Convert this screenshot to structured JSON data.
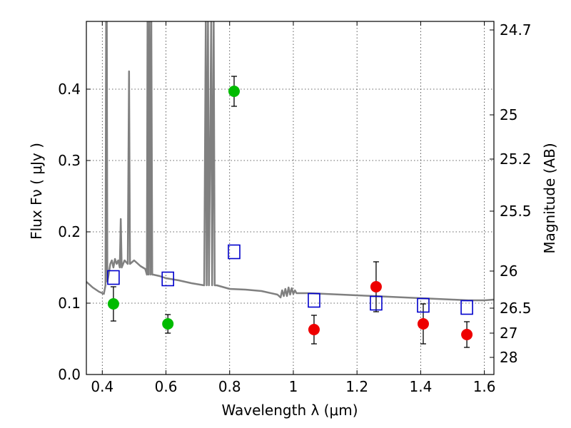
{
  "chart_data": {
    "type": "scatter",
    "xlabel": "Wavelength  λ (μm)",
    "ylabel": "Flux  Fν  ( μJy )",
    "right_ylabel": "Magnitude (AB)",
    "xlim": [
      0.35,
      1.63
    ],
    "ylim": [
      0.0,
      0.495
    ],
    "grid": true,
    "x_ticks": [
      0.4,
      0.6,
      0.8,
      1.0,
      1.2,
      1.4,
      1.6
    ],
    "x_tick_labels": [
      "0.4",
      "0.6",
      "0.8",
      "1",
      "1.2",
      "1.4",
      "1.6"
    ],
    "y_ticks": [
      0.0,
      0.1,
      0.2,
      0.3,
      0.4
    ],
    "y_tick_labels": [
      "0.0",
      "0.1",
      "0.2",
      "0.3",
      "0.4"
    ],
    "right_ticks": [
      {
        "label": "24.7",
        "flux": 0.483
      },
      {
        "label": "25",
        "flux": 0.364
      },
      {
        "label": "25.2",
        "flux": 0.302
      },
      {
        "label": "25.5",
        "flux": 0.229
      },
      {
        "label": "26",
        "flux": 0.145
      },
      {
        "label": "26.5",
        "flux": 0.093
      },
      {
        "label": "27",
        "flux": 0.058
      },
      {
        "label": "28",
        "flux": 0.024
      }
    ],
    "colors": {
      "green": "#00bb00",
      "red": "#ee0000",
      "blue": "#0000cc",
      "model": "#808080"
    },
    "series": [
      {
        "name": "observed-green",
        "marker": "circle",
        "color": "green",
        "points": [
          {
            "x": 0.435,
            "y": 0.099,
            "err": 0.024
          },
          {
            "x": 0.606,
            "y": 0.071,
            "err": 0.013
          },
          {
            "x": 0.814,
            "y": 0.397,
            "err": 0.021
          }
        ]
      },
      {
        "name": "observed-red",
        "marker": "circle",
        "color": "red",
        "points": [
          {
            "x": 1.065,
            "y": 0.063,
            "err": 0.02
          },
          {
            "x": 1.26,
            "y": 0.123,
            "err": 0.035
          },
          {
            "x": 1.408,
            "y": 0.071,
            "err": 0.028
          },
          {
            "x": 1.545,
            "y": 0.056,
            "err": 0.018
          }
        ]
      },
      {
        "name": "model-photometry",
        "marker": "square",
        "color": "blue",
        "points": [
          {
            "x": 0.435,
            "y": 0.136
          },
          {
            "x": 0.606,
            "y": 0.134
          },
          {
            "x": 0.814,
            "y": 0.172
          },
          {
            "x": 1.065,
            "y": 0.104
          },
          {
            "x": 1.26,
            "y": 0.1
          },
          {
            "x": 1.408,
            "y": 0.097
          },
          {
            "x": 1.545,
            "y": 0.094
          }
        ]
      }
    ],
    "model_spectrum": {
      "name": "model-sed",
      "color": "model",
      "points": [
        [
          0.35,
          0.13
        ],
        [
          0.37,
          0.122
        ],
        [
          0.39,
          0.116
        ],
        [
          0.405,
          0.113
        ],
        [
          0.41,
          0.125
        ],
        [
          0.412,
          0.495
        ],
        [
          0.414,
          0.495
        ],
        [
          0.416,
          0.13
        ],
        [
          0.42,
          0.14
        ],
        [
          0.425,
          0.155
        ],
        [
          0.43,
          0.16
        ],
        [
          0.435,
          0.15
        ],
        [
          0.44,
          0.162
        ],
        [
          0.445,
          0.155
        ],
        [
          0.45,
          0.16
        ],
        [
          0.455,
          0.15
        ],
        [
          0.458,
          0.218
        ],
        [
          0.461,
          0.15
        ],
        [
          0.47,
          0.16
        ],
        [
          0.48,
          0.155
        ],
        [
          0.484,
          0.425
        ],
        [
          0.487,
          0.155
        ],
        [
          0.5,
          0.16
        ],
        [
          0.52,
          0.152
        ],
        [
          0.535,
          0.148
        ],
        [
          0.54,
          0.14
        ],
        [
          0.542,
          0.495
        ],
        [
          0.545,
          0.14
        ],
        [
          0.548,
          0.495
        ],
        [
          0.551,
          0.14
        ],
        [
          0.554,
          0.495
        ],
        [
          0.557,
          0.14
        ],
        [
          0.56,
          0.14
        ],
        [
          0.58,
          0.138
        ],
        [
          0.6,
          0.135
        ],
        [
          0.64,
          0.132
        ],
        [
          0.68,
          0.128
        ],
        [
          0.72,
          0.125
        ],
        [
          0.725,
          0.495
        ],
        [
          0.728,
          0.125
        ],
        [
          0.732,
          0.495
        ],
        [
          0.735,
          0.125
        ],
        [
          0.742,
          0.495
        ],
        [
          0.745,
          0.125
        ],
        [
          0.75,
          0.495
        ],
        [
          0.753,
          0.125
        ],
        [
          0.76,
          0.125
        ],
        [
          0.8,
          0.12
        ],
        [
          0.85,
          0.119
        ],
        [
          0.9,
          0.117
        ],
        [
          0.95,
          0.112
        ],
        [
          0.96,
          0.108
        ],
        [
          0.965,
          0.118
        ],
        [
          0.97,
          0.11
        ],
        [
          0.975,
          0.12
        ],
        [
          0.98,
          0.11
        ],
        [
          0.985,
          0.122
        ],
        [
          0.99,
          0.112
        ],
        [
          0.995,
          0.121
        ],
        [
          1.0,
          0.113
        ],
        [
          1.005,
          0.118
        ],
        [
          1.01,
          0.114
        ],
        [
          1.05,
          0.114
        ],
        [
          1.1,
          0.113
        ],
        [
          1.15,
          0.112
        ],
        [
          1.2,
          0.111
        ],
        [
          1.25,
          0.11
        ],
        [
          1.3,
          0.109
        ],
        [
          1.35,
          0.108
        ],
        [
          1.4,
          0.107
        ],
        [
          1.45,
          0.106
        ],
        [
          1.5,
          0.105
        ],
        [
          1.55,
          0.104
        ],
        [
          1.6,
          0.104
        ],
        [
          1.63,
          0.105
        ]
      ]
    }
  }
}
